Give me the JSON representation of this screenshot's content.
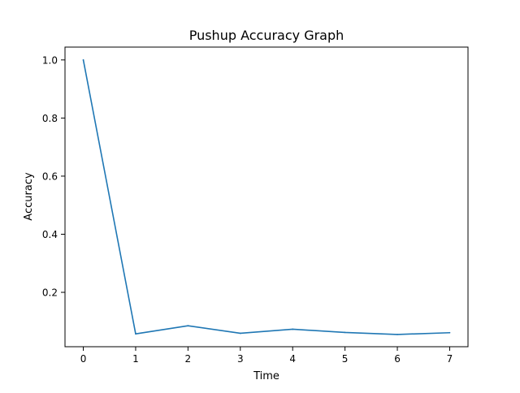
{
  "chart_data": {
    "type": "line",
    "title": "Pushup Accuracy Graph",
    "xlabel": "Time",
    "ylabel": "Accuracy",
    "x": [
      0,
      1,
      2,
      3,
      4,
      5,
      6,
      7
    ],
    "series": [
      {
        "values": [
          1.0,
          0.057,
          0.085,
          0.059,
          0.073,
          0.062,
          0.055,
          0.061
        ],
        "color": "#1f77b4"
      }
    ],
    "xlim": [
      -0.35,
      7.35
    ],
    "ylim": [
      0.0128,
      1.0442
    ],
    "xticks": [
      "0",
      "1",
      "2",
      "3",
      "4",
      "5",
      "6",
      "7"
    ],
    "yticks": [
      "0.2",
      "0.4",
      "0.6",
      "0.8",
      "1.0"
    ],
    "grid": false,
    "legend": "none"
  }
}
